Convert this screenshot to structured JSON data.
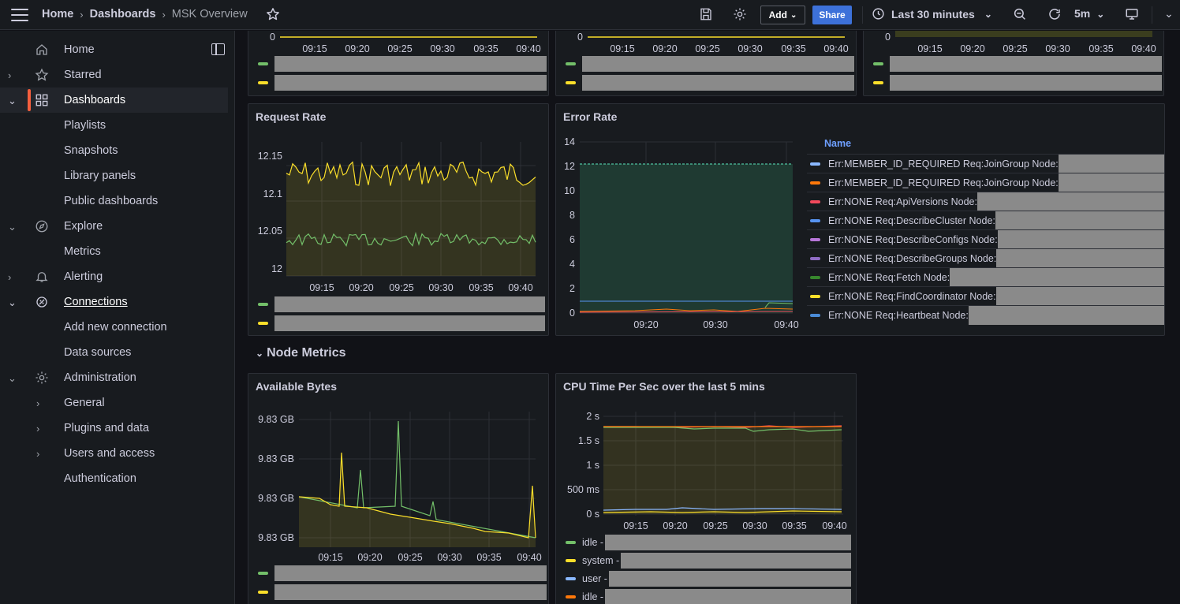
{
  "breadcrumb": {
    "home": "Home",
    "dashboards": "Dashboards",
    "current": "MSK Overview"
  },
  "toolbar": {
    "add_label": "Add",
    "share_label": "Share",
    "time_range": "Last 30 minutes",
    "refresh_interval": "5m"
  },
  "sidebar": {
    "items": [
      {
        "label": "Home"
      },
      {
        "label": "Starred"
      },
      {
        "label": "Dashboards"
      },
      {
        "label": "Playlists"
      },
      {
        "label": "Snapshots"
      },
      {
        "label": "Library panels"
      },
      {
        "label": "Public dashboards"
      },
      {
        "label": "Explore"
      },
      {
        "label": "Metrics"
      },
      {
        "label": "Alerting"
      },
      {
        "label": "Connections"
      },
      {
        "label": "Add new connection"
      },
      {
        "label": "Data sources"
      },
      {
        "label": "Administration"
      },
      {
        "label": "General"
      },
      {
        "label": "Plugins and data"
      },
      {
        "label": "Users and access"
      },
      {
        "label": "Authentication"
      }
    ]
  },
  "time_ticks": [
    "09:15",
    "09:20",
    "09:25",
    "09:30",
    "09:35",
    "09:40"
  ],
  "top_panels": {
    "zero_label": "0"
  },
  "request_rate": {
    "title": "Request Rate",
    "y_ticks": [
      "12.15",
      "12.1",
      "12.05",
      "12"
    ]
  },
  "error_rate": {
    "title": "Error Rate",
    "y_ticks": [
      "14",
      "12",
      "10",
      "8",
      "6",
      "4",
      "2",
      "0"
    ],
    "x_ticks": [
      "09:20",
      "09:30",
      "09:40"
    ],
    "legend_header": "Name",
    "legend": [
      {
        "label": "Err:MEMBER_ID_REQUIRED Req:JoinGroup Node:",
        "color": "#8ab8ff"
      },
      {
        "label": "Err:MEMBER_ID_REQUIRED Req:JoinGroup Node:",
        "color": "#ff780a"
      },
      {
        "label": "Err:NONE Req:ApiVersions Node:",
        "color": "#f2495c"
      },
      {
        "label": "Err:NONE Req:DescribeCluster Node:",
        "color": "#5794f2"
      },
      {
        "label": "Err:NONE Req:DescribeConfigs Node:",
        "color": "#b877d9"
      },
      {
        "label": "Err:NONE Req:DescribeGroups Node:",
        "color": "#8f6cc4"
      },
      {
        "label": "Err:NONE Req:Fetch Node:",
        "color": "#37872d"
      },
      {
        "label": "Err:NONE Req:FindCoordinator Node:",
        "color": "#fade2a"
      },
      {
        "label": "Err:NONE Req:Heartbeat Node:",
        "color": "#4a8bd6"
      }
    ]
  },
  "section": {
    "title": "Node Metrics"
  },
  "available_bytes": {
    "title": "Available Bytes",
    "y_ticks": [
      "9.83 GB",
      "9.83 GB",
      "9.83 GB",
      "9.83 GB"
    ]
  },
  "cpu_time": {
    "title": "CPU Time Per Sec over the last 5 mins",
    "y_ticks": [
      "2 s",
      "1.5 s",
      "1 s",
      "500 ms",
      "0 s"
    ],
    "legend": [
      {
        "label": "idle - ",
        "color": "#73bf69"
      },
      {
        "label": "system - ",
        "color": "#fade2a"
      },
      {
        "label": "user - ",
        "color": "#8ab8ff"
      },
      {
        "label": "idle - ",
        "color": "#ff780a"
      }
    ]
  },
  "colors": {
    "green": "#73bf69",
    "yellow": "#fade2a",
    "accent": "#3d71d9",
    "active": "#f55f3e"
  }
}
